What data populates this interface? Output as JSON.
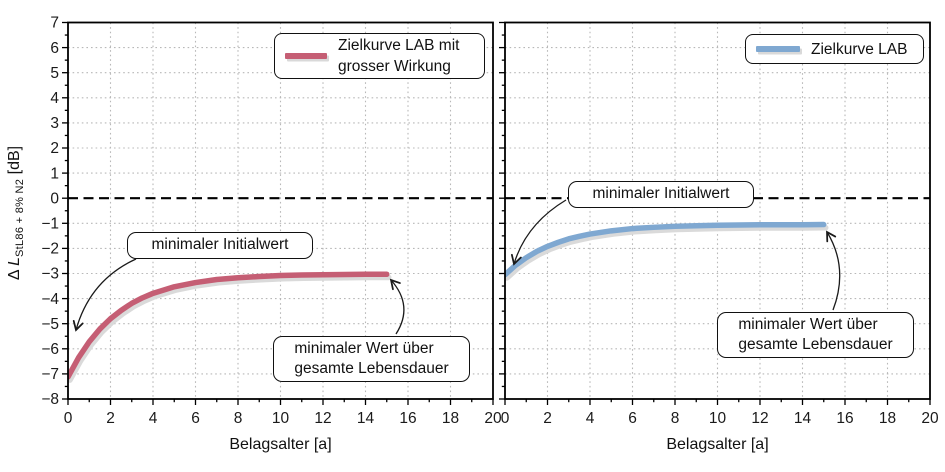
{
  "figure": {
    "background": "#ffffff",
    "text_color": "#1a1a1a",
    "ylabel": {
      "prefix": "Δ ",
      "symbol": "L",
      "sub": "StL86 + 8% N2",
      "suffix": " [dB]"
    }
  },
  "chart_data": [
    {
      "type": "line",
      "panel": "left",
      "xlabel": "Belagsalter [a]",
      "ylabel": "Δ L_StL86+8% N2 [dB]",
      "xlim": [
        0,
        20
      ],
      "ylim": [
        -8,
        7
      ],
      "xticks": [
        0,
        2,
        4,
        6,
        8,
        10,
        12,
        14,
        16,
        18,
        20
      ],
      "yticks": [
        -8,
        -7,
        -6,
        -5,
        -4,
        -3,
        -2,
        -1,
        0,
        1,
        2,
        3,
        4,
        5,
        6,
        7
      ],
      "minor_x_step": 1,
      "minor_y_step": 0.5,
      "grid": true,
      "grid_color": "#b8b8b8",
      "zero_line": {
        "y": 0,
        "style": "dashed",
        "color": "#000000"
      },
      "legend": {
        "label": "Zielkurve LAB mit grosser Wirkung",
        "label_lines": [
          "Zielkurve LAB mit",
          "grosser Wirkung"
        ],
        "position": "upper right"
      },
      "series": [
        {
          "name": "Zielkurve LAB mit grosser Wirkung",
          "color": "#c55e74",
          "shadow_color": "#dadada",
          "x": [
            0,
            0.5,
            1,
            1.5,
            2,
            2.5,
            3,
            3.5,
            4,
            5,
            6,
            7,
            8,
            9,
            10,
            11,
            12,
            13,
            14,
            15
          ],
          "y": [
            -7.12,
            -6.35,
            -5.72,
            -5.21,
            -4.8,
            -4.47,
            -4.19,
            -3.97,
            -3.79,
            -3.53,
            -3.36,
            -3.24,
            -3.17,
            -3.12,
            -3.08,
            -3.06,
            -3.05,
            -3.04,
            -3.03,
            -3.03
          ]
        }
      ],
      "annotations": [
        {
          "text": "minimaler Initialwert",
          "points_to": [
            0.4,
            -5.3
          ]
        },
        {
          "text": "minimaler Wert über\ngesamte Lebensdauer",
          "points_to": [
            15.2,
            -3.2
          ]
        }
      ]
    },
    {
      "type": "line",
      "panel": "right",
      "xlabel": "Belagsalter [a]",
      "ylabel": "Δ L_StL86+8% N2 [dB]",
      "xlim": [
        0,
        20
      ],
      "ylim": [
        -8,
        7
      ],
      "xticks": [
        0,
        2,
        4,
        6,
        8,
        10,
        12,
        14,
        16,
        18,
        20
      ],
      "yticks": [
        -8,
        -7,
        -6,
        -5,
        -4,
        -3,
        -2,
        -1,
        0,
        1,
        2,
        3,
        4,
        5,
        6,
        7
      ],
      "minor_x_step": 1,
      "minor_y_step": 0.5,
      "grid": true,
      "grid_color": "#b8b8b8",
      "zero_line": {
        "y": 0,
        "style": "dashed",
        "color": "#000000"
      },
      "legend": {
        "label": "Zielkurve LAB",
        "label_lines": [
          "Zielkurve LAB"
        ],
        "position": "upper right"
      },
      "series": [
        {
          "name": "Zielkurve LAB",
          "color": "#7fa8d1",
          "shadow_color": "#dadada",
          "x": [
            0,
            0.5,
            1,
            1.5,
            2,
            2.5,
            3,
            3.5,
            4,
            5,
            6,
            7,
            8,
            9,
            10,
            11,
            12,
            13,
            14,
            15
          ],
          "y": [
            -3.05,
            -2.67,
            -2.37,
            -2.12,
            -1.92,
            -1.76,
            -1.62,
            -1.52,
            -1.43,
            -1.3,
            -1.21,
            -1.16,
            -1.12,
            -1.1,
            -1.08,
            -1.07,
            -1.06,
            -1.06,
            -1.06,
            -1.05
          ]
        }
      ],
      "annotations": [
        {
          "text": "minimaler Initialwert",
          "points_to": [
            0.4,
            -2.6
          ]
        },
        {
          "text": "minimaler Wert über\ngesamte Lebensdauer",
          "points_to": [
            15.2,
            -1.3
          ]
        }
      ]
    }
  ]
}
